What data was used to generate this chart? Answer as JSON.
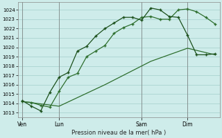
{
  "title": "Pression niveau de la mer( hPa )",
  "bg_color": "#ceecea",
  "grid_color": "#aad4d0",
  "line_color1": "#2d6e2d",
  "line_color2": "#1a4f1a",
  "line_color3": "#2d6e2d",
  "ylim_min": 1012.5,
  "ylim_max": 1024.8,
  "yticks": [
    1013,
    1014,
    1015,
    1016,
    1017,
    1018,
    1019,
    1020,
    1021,
    1022,
    1023,
    1024
  ],
  "xtick_labels": [
    "Ven",
    "Lun",
    "Sam",
    "Dim"
  ],
  "xtick_positions": [
    0,
    4,
    13,
    18
  ],
  "total_points": 22,
  "series1_x": [
    0,
    1,
    2,
    3,
    4,
    5,
    6,
    7,
    8,
    9,
    10,
    11,
    12,
    13,
    14,
    15,
    16,
    17,
    18,
    19,
    20,
    21
  ],
  "series1_y": [
    1014.2,
    1014.1,
    1013.8,
    1013.6,
    1015.3,
    1016.8,
    1017.2,
    1019.0,
    1019.6,
    1020.2,
    1021.5,
    1022.1,
    1022.5,
    1023.2,
    1023.3,
    1023.0,
    1023.0,
    1024.0,
    1024.1,
    1023.8,
    1023.2,
    1022.5
  ],
  "series2_x": [
    0,
    1,
    2,
    3,
    4,
    5,
    6,
    7,
    8,
    9,
    10,
    11,
    12,
    13,
    14,
    15,
    16,
    17,
    18,
    19,
    20,
    21
  ],
  "series2_y": [
    1014.3,
    1013.7,
    1013.2,
    1015.2,
    1016.8,
    1017.3,
    1019.6,
    1020.1,
    1021.2,
    1022.0,
    1022.6,
    1023.2,
    1023.2,
    1022.9,
    1024.2,
    1024.0,
    1023.3,
    1023.2,
    1021.3,
    1019.2,
    1019.2,
    1019.3
  ],
  "series3_x": [
    0,
    4,
    9,
    14,
    18,
    21
  ],
  "series3_y": [
    1014.2,
    1013.7,
    1016.0,
    1018.5,
    1019.9,
    1019.2
  ]
}
